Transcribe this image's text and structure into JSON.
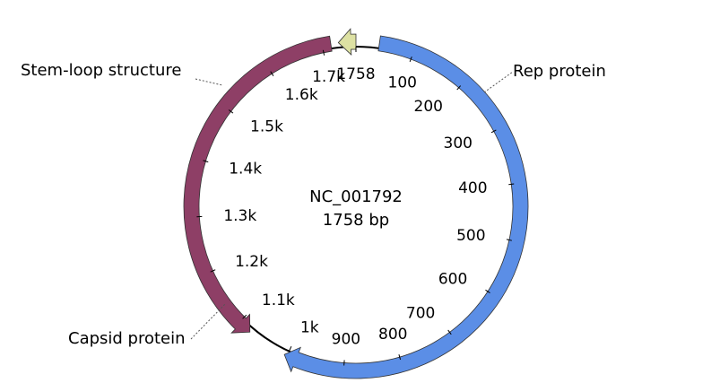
{
  "map": {
    "name": "NC_001792",
    "length_label": "1758 bp",
    "sequence_length": 1758
  },
  "ticks": [
    {
      "pos": 100,
      "label": "100"
    },
    {
      "pos": 200,
      "label": "200"
    },
    {
      "pos": 300,
      "label": "300"
    },
    {
      "pos": 400,
      "label": "400"
    },
    {
      "pos": 500,
      "label": "500"
    },
    {
      "pos": 600,
      "label": "600"
    },
    {
      "pos": 700,
      "label": "700"
    },
    {
      "pos": 800,
      "label": "800"
    },
    {
      "pos": 900,
      "label": "900"
    },
    {
      "pos": 1000,
      "label": "1k"
    },
    {
      "pos": 1100,
      "label": "1.1k"
    },
    {
      "pos": 1200,
      "label": "1.2k"
    },
    {
      "pos": 1300,
      "label": "1.3k"
    },
    {
      "pos": 1400,
      "label": "1.4k"
    },
    {
      "pos": 1500,
      "label": "1.5k"
    },
    {
      "pos": 1600,
      "label": "1.6k"
    },
    {
      "pos": 1700,
      "label": "1.7k"
    },
    {
      "pos": 1758,
      "label": "1758"
    }
  ],
  "features": [
    {
      "name": "Rep protein",
      "start": 40,
      "end": 1005,
      "strand": "+",
      "color": "#5b8ee6"
    },
    {
      "name": "Capsid protein",
      "start": 1075,
      "end": 1715,
      "strand": "-",
      "color": "#8e3f66"
    },
    {
      "name": "Stem-loop structure",
      "start": 1728,
      "end": 1758,
      "strand": "-",
      "color": "#dde1a3"
    }
  ],
  "backbone_color": "#000000"
}
